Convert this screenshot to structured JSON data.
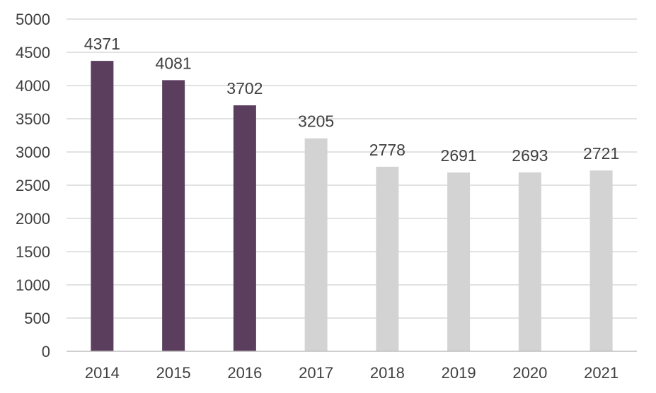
{
  "chart_data": {
    "type": "bar",
    "title": "",
    "xlabel": "",
    "ylabel": "",
    "categories": [
      "2014",
      "2015",
      "2016",
      "2017",
      "2018",
      "2019",
      "2020",
      "2021"
    ],
    "values": [
      4371,
      4081,
      3702,
      3205,
      2778,
      2691,
      2693,
      2721
    ],
    "ylim": [
      0,
      5000
    ],
    "yticks": [
      0,
      500,
      1000,
      1500,
      2000,
      2500,
      3000,
      3500,
      4000,
      4500,
      5000
    ],
    "grid": true,
    "legend": "none",
    "colors": {
      "highlight": "#5b3e5d",
      "muted": "#d3d3d3",
      "grid": "#d9d9d9",
      "axis": "#bfbfbf",
      "text": "#404040"
    },
    "highlighted_categories": [
      "2014",
      "2015",
      "2016"
    ]
  }
}
